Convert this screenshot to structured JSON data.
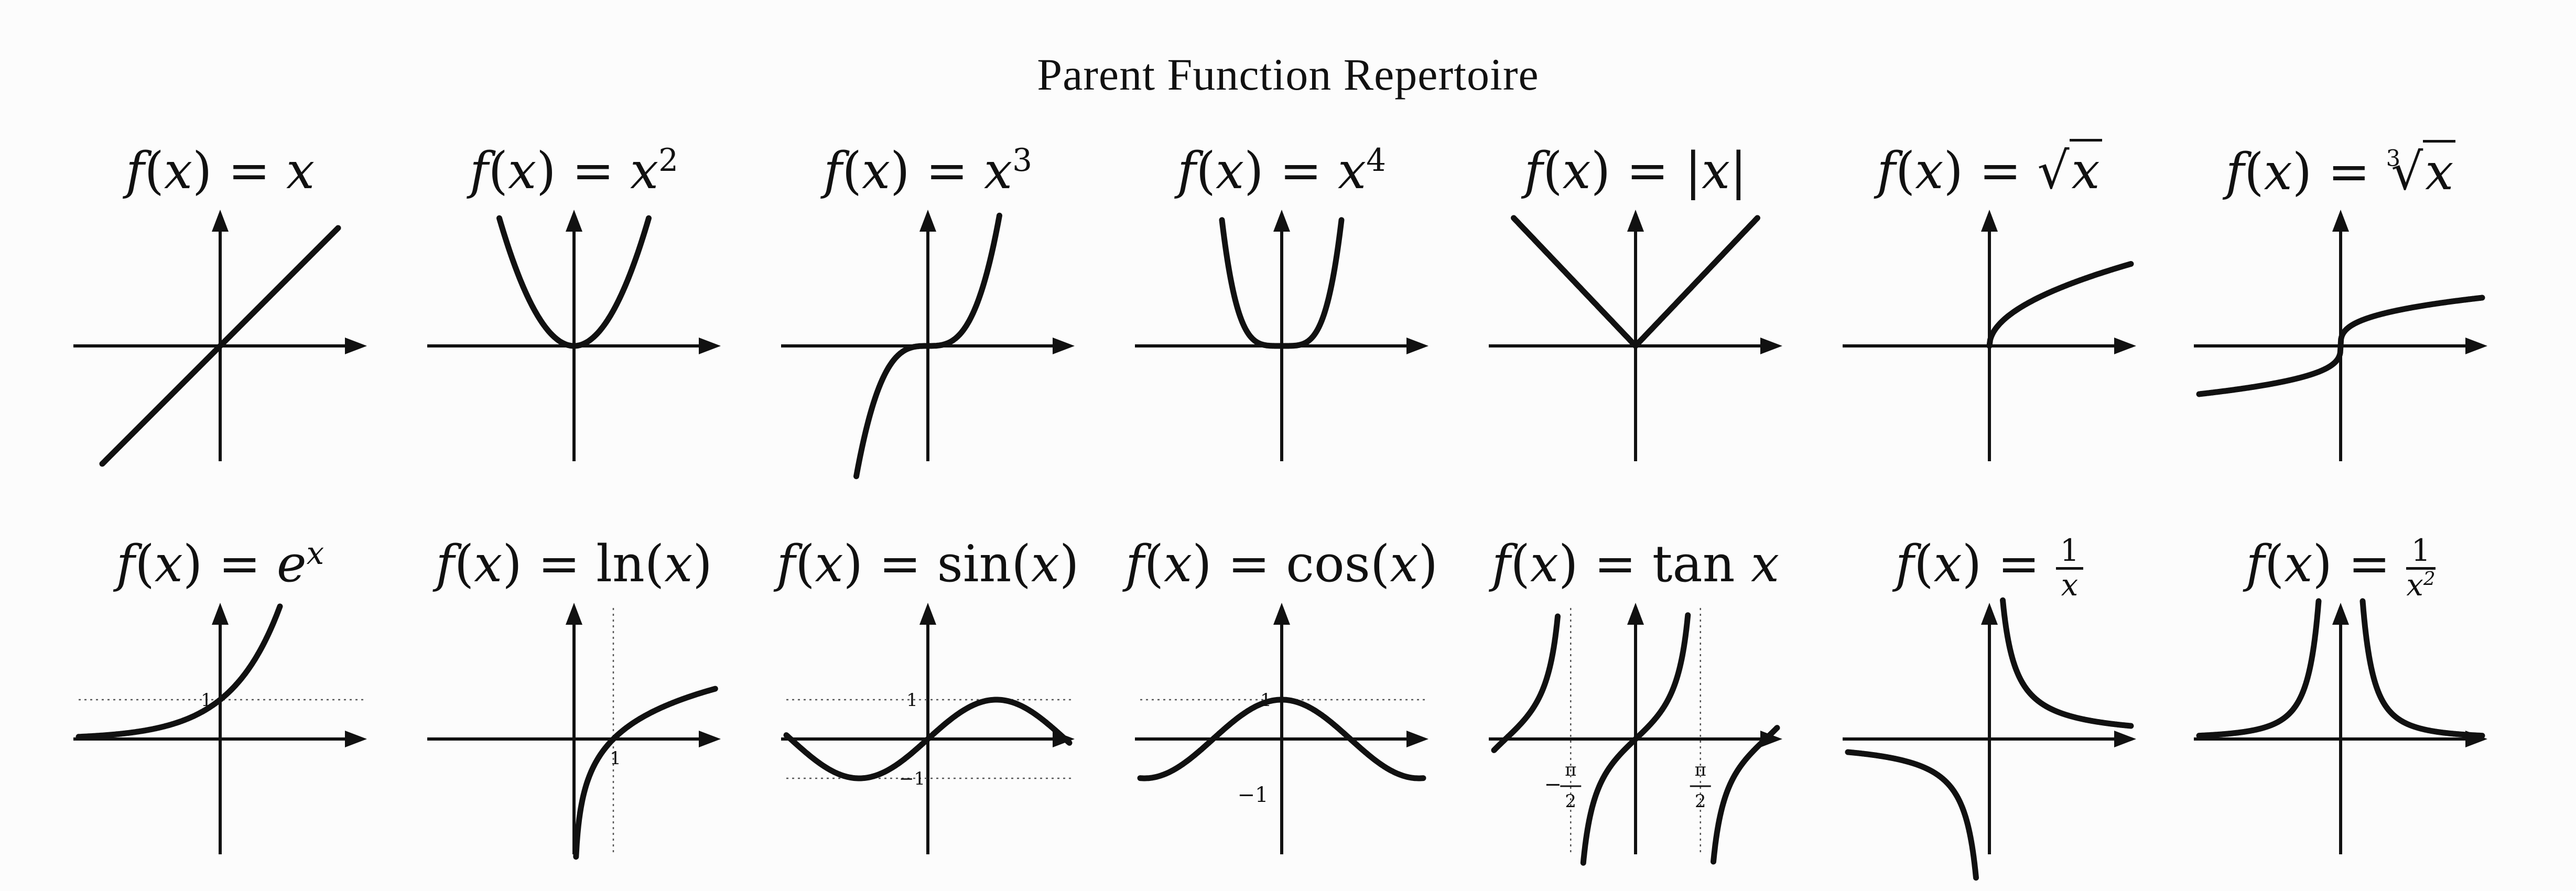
{
  "title": "Parent Function Repertoire",
  "rows": [
    [
      {
        "id": "identity",
        "label": "f(x) = x"
      },
      {
        "id": "square",
        "label": "f(x) = x^2"
      },
      {
        "id": "cube",
        "label": "f(x) = x^3"
      },
      {
        "id": "quartic",
        "label": "f(x) = x^4"
      },
      {
        "id": "absolute",
        "label": "f(x) = |x|"
      },
      {
        "id": "sqrt",
        "label": "f(x) = √x"
      },
      {
        "id": "cbrt",
        "label": "f(x) = ∛x"
      }
    ],
    [
      {
        "id": "exp",
        "label": "f(x) = e^x"
      },
      {
        "id": "ln",
        "label": "f(x) = ln(x)"
      },
      {
        "id": "sin",
        "label": "f(x) = sin(x)"
      },
      {
        "id": "cos",
        "label": "f(x) = cos(x)"
      },
      {
        "id": "tan",
        "label": "f(x) = tan x"
      },
      {
        "id": "reciprocal",
        "label": "f(x) = 1/x"
      },
      {
        "id": "inv-square",
        "label": "f(x) = 1/x^2"
      }
    ]
  ],
  "annotations": {
    "exp_one": "1",
    "ln_one": "1",
    "sin_one": "1",
    "sin_neg_one": "−1",
    "cos_one": "1",
    "cos_neg_one": "−1",
    "tan_neg_pi": "π",
    "tan_neg_two": "2",
    "tan_neg_sign": "−",
    "tan_pos_pi": "π",
    "tan_pos_two": "2"
  },
  "colors": {
    "ink": "#111111",
    "background": "#fcfcfc",
    "guide": "#555555"
  }
}
